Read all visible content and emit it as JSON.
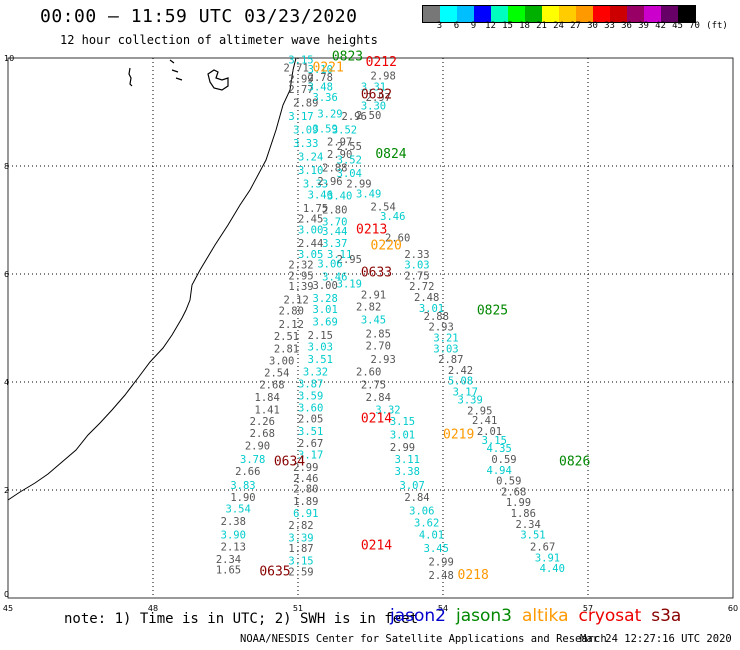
{
  "title": "00:00 – 11:59 UTC 03/23/2020",
  "subtitle": "12 hour collection of altimeter wave heights",
  "colorbar": {
    "colors": [
      "#777777",
      "#00ffff",
      "#00bfff",
      "#0000ff",
      "#00ffbf",
      "#00ff00",
      "#00b000",
      "#ffff00",
      "#ffcc00",
      "#ff9900",
      "#ff0000",
      "#cc0000",
      "#990066",
      "#cc00cc",
      "#660066",
      "#000000"
    ],
    "labels": [
      "3",
      "6",
      "9",
      "12",
      "15",
      "18",
      "21",
      "24",
      "27",
      "30",
      "33",
      "36",
      "39",
      "42",
      "45",
      "70"
    ],
    "unit": "(ft)"
  },
  "colors": {
    "gray": "#555555",
    "cyan": "#00cccc",
    "jason2": "#0000cc",
    "jason3": "#008800",
    "altika": "#ff9900",
    "cryosat": "#ee0000",
    "s3a": "#880000"
  },
  "axes": {
    "x_ticks": [
      "45",
      "48",
      "51",
      "54",
      "57",
      "60"
    ],
    "y_ticks": [
      "0",
      "2",
      "4",
      "6",
      "8",
      "10"
    ]
  },
  "chart_data": {
    "type": "scatter",
    "x_unit": "longitude (deg)",
    "y_unit": "latitude (deg)",
    "xlim": [
      45,
      60
    ],
    "ylim": [
      0,
      10
    ],
    "wave_heights": [
      {
        "x": 50.8,
        "y": 9.9,
        "v": "3.15",
        "c": "cyan"
      },
      {
        "x": 50.7,
        "y": 9.75,
        "v": "2.71",
        "c": "gray"
      },
      {
        "x": 51.2,
        "y": 9.72,
        "v": "3.10",
        "c": "cyan"
      },
      {
        "x": 50.8,
        "y": 9.55,
        "v": "2.99",
        "c": "gray"
      },
      {
        "x": 51.2,
        "y": 9.57,
        "v": "2.78",
        "c": "gray"
      },
      {
        "x": 52.5,
        "y": 9.6,
        "v": "2.98",
        "c": "gray"
      },
      {
        "x": 50.8,
        "y": 9.35,
        "v": "2.77",
        "c": "gray"
      },
      {
        "x": 51.2,
        "y": 9.4,
        "v": "3.48",
        "c": "cyan"
      },
      {
        "x": 51.3,
        "y": 9.2,
        "v": "3.36",
        "c": "cyan"
      },
      {
        "x": 52.3,
        "y": 9.4,
        "v": "3.31",
        "c": "cyan"
      },
      {
        "x": 52.4,
        "y": 9.2,
        "v": "2.97",
        "c": "gray"
      },
      {
        "x": 50.9,
        "y": 9.1,
        "v": "2.89",
        "c": "gray"
      },
      {
        "x": 52.3,
        "y": 9.05,
        "v": "3.30",
        "c": "cyan"
      },
      {
        "x": 50.8,
        "y": 8.85,
        "v": "3.17",
        "c": "cyan"
      },
      {
        "x": 51.4,
        "y": 8.9,
        "v": "3.29",
        "c": "cyan"
      },
      {
        "x": 51.9,
        "y": 8.85,
        "v": "2.96",
        "c": "gray"
      },
      {
        "x": 52.2,
        "y": 8.87,
        "v": "2.50",
        "c": "gray"
      },
      {
        "x": 50.9,
        "y": 8.6,
        "v": "3.09",
        "c": "cyan"
      },
      {
        "x": 51.3,
        "y": 8.62,
        "v": "3.59",
        "c": "cyan"
      },
      {
        "x": 51.7,
        "y": 8.6,
        "v": "3.52",
        "c": "cyan"
      },
      {
        "x": 50.9,
        "y": 8.35,
        "v": "3.33",
        "c": "cyan"
      },
      {
        "x": 51.6,
        "y": 8.38,
        "v": "2.97",
        "c": "gray"
      },
      {
        "x": 51.8,
        "y": 8.3,
        "v": "2.55",
        "c": "gray"
      },
      {
        "x": 51.0,
        "y": 8.1,
        "v": "3.24",
        "c": "cyan"
      },
      {
        "x": 51.6,
        "y": 8.15,
        "v": "2.90",
        "c": "gray"
      },
      {
        "x": 51.8,
        "y": 8.05,
        "v": "3.52",
        "c": "cyan"
      },
      {
        "x": 51.0,
        "y": 7.85,
        "v": "3.10",
        "c": "cyan"
      },
      {
        "x": 51.5,
        "y": 7.9,
        "v": "2.88",
        "c": "gray"
      },
      {
        "x": 51.8,
        "y": 7.8,
        "v": "3.04",
        "c": "cyan"
      },
      {
        "x": 51.1,
        "y": 7.6,
        "v": "3.33",
        "c": "cyan"
      },
      {
        "x": 51.4,
        "y": 7.65,
        "v": "2.96",
        "c": "gray"
      },
      {
        "x": 52.0,
        "y": 7.6,
        "v": "2.99",
        "c": "gray"
      },
      {
        "x": 51.2,
        "y": 7.4,
        "v": "3.46",
        "c": "cyan"
      },
      {
        "x": 51.6,
        "y": 7.38,
        "v": "3.40",
        "c": "cyan"
      },
      {
        "x": 52.2,
        "y": 7.42,
        "v": "3.49",
        "c": "cyan"
      },
      {
        "x": 51.1,
        "y": 7.15,
        "v": "1.75",
        "c": "gray"
      },
      {
        "x": 51.5,
        "y": 7.12,
        "v": "2.80",
        "c": "gray"
      },
      {
        "x": 52.5,
        "y": 7.18,
        "v": "2.54",
        "c": "gray"
      },
      {
        "x": 51.0,
        "y": 6.95,
        "v": "2.45",
        "c": "gray"
      },
      {
        "x": 51.5,
        "y": 6.9,
        "v": "3.70",
        "c": "cyan"
      },
      {
        "x": 52.7,
        "y": 7.0,
        "v": "3.46",
        "c": "cyan"
      },
      {
        "x": 51.0,
        "y": 6.75,
        "v": "3.00",
        "c": "cyan"
      },
      {
        "x": 51.5,
        "y": 6.72,
        "v": "3.44",
        "c": "cyan"
      },
      {
        "x": 52.8,
        "y": 6.6,
        "v": "2.60",
        "c": "gray"
      },
      {
        "x": 51.0,
        "y": 6.5,
        "v": "2.44",
        "c": "gray"
      },
      {
        "x": 51.5,
        "y": 6.5,
        "v": "3.37",
        "c": "cyan"
      },
      {
        "x": 51.6,
        "y": 6.3,
        "v": "3.11",
        "c": "cyan"
      },
      {
        "x": 53.2,
        "y": 6.3,
        "v": "2.33",
        "c": "gray"
      },
      {
        "x": 51.0,
        "y": 6.3,
        "v": "3.05",
        "c": "cyan"
      },
      {
        "x": 51.8,
        "y": 6.2,
        "v": "2.95",
        "c": "gray"
      },
      {
        "x": 50.8,
        "y": 6.1,
        "v": "2.32",
        "c": "gray"
      },
      {
        "x": 51.4,
        "y": 6.12,
        "v": "3.06",
        "c": "cyan"
      },
      {
        "x": 53.2,
        "y": 6.1,
        "v": "3.03",
        "c": "cyan"
      },
      {
        "x": 50.8,
        "y": 5.9,
        "v": "2.95",
        "c": "gray"
      },
      {
        "x": 51.5,
        "y": 5.88,
        "v": "3.46",
        "c": "cyan"
      },
      {
        "x": 53.2,
        "y": 5.9,
        "v": "2.75",
        "c": "gray"
      },
      {
        "x": 50.8,
        "y": 5.7,
        "v": "1.39",
        "c": "gray"
      },
      {
        "x": 51.3,
        "y": 5.72,
        "v": "3.00",
        "c": "gray"
      },
      {
        "x": 51.8,
        "y": 5.75,
        "v": "3.19",
        "c": "cyan"
      },
      {
        "x": 53.3,
        "y": 5.7,
        "v": "2.72",
        "c": "gray"
      },
      {
        "x": 52.3,
        "y": 5.55,
        "v": "2.91",
        "c": "gray"
      },
      {
        "x": 50.7,
        "y": 5.45,
        "v": "2.12",
        "c": "gray"
      },
      {
        "x": 51.3,
        "y": 5.48,
        "v": "3.28",
        "c": "cyan"
      },
      {
        "x": 53.4,
        "y": 5.5,
        "v": "2.48",
        "c": "gray"
      },
      {
        "x": 50.6,
        "y": 5.25,
        "v": "2.80",
        "c": "gray"
      },
      {
        "x": 51.3,
        "y": 5.28,
        "v": "3.01",
        "c": "cyan"
      },
      {
        "x": 52.2,
        "y": 5.32,
        "v": "2.82",
        "c": "gray"
      },
      {
        "x": 53.5,
        "y": 5.3,
        "v": "3.01",
        "c": "cyan"
      },
      {
        "x": 50.6,
        "y": 5.0,
        "v": "2.12",
        "c": "gray"
      },
      {
        "x": 51.3,
        "y": 5.05,
        "v": "3.69",
        "c": "cyan"
      },
      {
        "x": 52.3,
        "y": 5.08,
        "v": "3.45",
        "c": "cyan"
      },
      {
        "x": 53.6,
        "y": 5.15,
        "v": "2.88",
        "c": "gray"
      },
      {
        "x": 53.7,
        "y": 4.95,
        "v": "2.93",
        "c": "gray"
      },
      {
        "x": 50.5,
        "y": 4.78,
        "v": "2.51",
        "c": "gray"
      },
      {
        "x": 51.2,
        "y": 4.8,
        "v": "2.15",
        "c": "gray"
      },
      {
        "x": 52.4,
        "y": 4.82,
        "v": "2.85",
        "c": "gray"
      },
      {
        "x": 53.8,
        "y": 4.75,
        "v": "3.21",
        "c": "cyan"
      },
      {
        "x": 50.5,
        "y": 4.55,
        "v": "2.81",
        "c": "gray"
      },
      {
        "x": 51.2,
        "y": 4.58,
        "v": "3.03",
        "c": "cyan"
      },
      {
        "x": 52.4,
        "y": 4.6,
        "v": "2.70",
        "c": "gray"
      },
      {
        "x": 53.8,
        "y": 4.55,
        "v": "3.03",
        "c": "cyan"
      },
      {
        "x": 50.4,
        "y": 4.32,
        "v": "3.00",
        "c": "gray"
      },
      {
        "x": 51.2,
        "y": 4.35,
        "v": "3.51",
        "c": "cyan"
      },
      {
        "x": 52.5,
        "y": 4.35,
        "v": "2.93",
        "c": "gray"
      },
      {
        "x": 53.9,
        "y": 4.35,
        "v": "2.87",
        "c": "gray"
      },
      {
        "x": 50.3,
        "y": 4.1,
        "v": "2.54",
        "c": "gray"
      },
      {
        "x": 51.1,
        "y": 4.12,
        "v": "3.32",
        "c": "cyan"
      },
      {
        "x": 52.2,
        "y": 4.12,
        "v": "2.60",
        "c": "gray"
      },
      {
        "x": 54.1,
        "y": 4.15,
        "v": "2.42",
        "c": "gray"
      },
      {
        "x": 50.2,
        "y": 3.88,
        "v": "2.68",
        "c": "gray"
      },
      {
        "x": 51.0,
        "y": 3.9,
        "v": "3.87",
        "c": "cyan"
      },
      {
        "x": 52.3,
        "y": 3.88,
        "v": "2.75",
        "c": "gray"
      },
      {
        "x": 54.1,
        "y": 3.95,
        "v": "5.08",
        "c": "cyan"
      },
      {
        "x": 54.2,
        "y": 3.75,
        "v": "3.17",
        "c": "cyan"
      },
      {
        "x": 50.1,
        "y": 3.65,
        "v": "1.84",
        "c": "gray"
      },
      {
        "x": 51.0,
        "y": 3.68,
        "v": "3.59",
        "c": "cyan"
      },
      {
        "x": 52.4,
        "y": 3.65,
        "v": "2.84",
        "c": "gray"
      },
      {
        "x": 54.3,
        "y": 3.6,
        "v": "3.39",
        "c": "cyan"
      },
      {
        "x": 50.1,
        "y": 3.42,
        "v": "1.41",
        "c": "gray"
      },
      {
        "x": 51.0,
        "y": 3.45,
        "v": "3.60",
        "c": "cyan"
      },
      {
        "x": 52.6,
        "y": 3.42,
        "v": "3.32",
        "c": "cyan"
      },
      {
        "x": 54.5,
        "y": 3.4,
        "v": "2.95",
        "c": "gray"
      },
      {
        "x": 50.0,
        "y": 3.2,
        "v": "2.26",
        "c": "gray"
      },
      {
        "x": 51.0,
        "y": 3.25,
        "v": "2.05",
        "c": "gray"
      },
      {
        "x": 52.9,
        "y": 3.2,
        "v": "3.15",
        "c": "cyan"
      },
      {
        "x": 54.6,
        "y": 3.22,
        "v": "2.41",
        "c": "gray"
      },
      {
        "x": 50.0,
        "y": 2.98,
        "v": "2.68",
        "c": "gray"
      },
      {
        "x": 51.0,
        "y": 3.02,
        "v": "3.51",
        "c": "cyan"
      },
      {
        "x": 52.9,
        "y": 2.95,
        "v": "3.01",
        "c": "cyan"
      },
      {
        "x": 54.7,
        "y": 3.02,
        "v": "2.01",
        "c": "gray"
      },
      {
        "x": 49.9,
        "y": 2.75,
        "v": "2.90",
        "c": "gray"
      },
      {
        "x": 51.0,
        "y": 2.8,
        "v": "2.67",
        "c": "gray"
      },
      {
        "x": 52.9,
        "y": 2.72,
        "v": "2.99",
        "c": "gray"
      },
      {
        "x": 54.8,
        "y": 2.85,
        "v": "3.15",
        "c": "cyan"
      },
      {
        "x": 54.9,
        "y": 2.7,
        "v": "4.35",
        "c": "cyan"
      },
      {
        "x": 49.8,
        "y": 2.5,
        "v": "3.78",
        "c": "cyan"
      },
      {
        "x": 51.0,
        "y": 2.58,
        "v": "3.17",
        "c": "cyan"
      },
      {
        "x": 53.0,
        "y": 2.5,
        "v": "3.11",
        "c": "cyan"
      },
      {
        "x": 55.0,
        "y": 2.5,
        "v": "0.59",
        "c": "gray"
      },
      {
        "x": 49.7,
        "y": 2.28,
        "v": "2.66",
        "c": "gray"
      },
      {
        "x": 50.9,
        "y": 2.35,
        "v": "2.99",
        "c": "gray"
      },
      {
        "x": 53.0,
        "y": 2.28,
        "v": "3.38",
        "c": "cyan"
      },
      {
        "x": 54.9,
        "y": 2.3,
        "v": "4.94",
        "c": "cyan"
      },
      {
        "x": 50.9,
        "y": 2.15,
        "v": "2.46",
        "c": "gray"
      },
      {
        "x": 55.1,
        "y": 2.1,
        "v": "0.59",
        "c": "gray"
      },
      {
        "x": 49.6,
        "y": 2.02,
        "v": "3.83",
        "c": "cyan"
      },
      {
        "x": 50.9,
        "y": 1.95,
        "v": "2.80",
        "c": "gray"
      },
      {
        "x": 53.1,
        "y": 2.02,
        "v": "3.07",
        "c": "cyan"
      },
      {
        "x": 55.2,
        "y": 1.9,
        "v": "2.68",
        "c": "gray"
      },
      {
        "x": 49.6,
        "y": 1.8,
        "v": "1.90",
        "c": "gray"
      },
      {
        "x": 50.9,
        "y": 1.72,
        "v": "1.89",
        "c": "gray"
      },
      {
        "x": 53.2,
        "y": 1.8,
        "v": "2.84",
        "c": "gray"
      },
      {
        "x": 55.3,
        "y": 1.7,
        "v": "1.99",
        "c": "gray"
      },
      {
        "x": 49.5,
        "y": 1.58,
        "v": "3.54",
        "c": "cyan"
      },
      {
        "x": 50.9,
        "y": 1.5,
        "v": "6.91",
        "c": "cyan"
      },
      {
        "x": 53.3,
        "y": 1.55,
        "v": "3.06",
        "c": "cyan"
      },
      {
        "x": 55.4,
        "y": 1.5,
        "v": "1.86",
        "c": "gray"
      },
      {
        "x": 49.4,
        "y": 1.35,
        "v": "2.38",
        "c": "gray"
      },
      {
        "x": 50.8,
        "y": 1.28,
        "v": "2.82",
        "c": "gray"
      },
      {
        "x": 53.4,
        "y": 1.32,
        "v": "3.62",
        "c": "cyan"
      },
      {
        "x": 55.5,
        "y": 1.3,
        "v": "2.34",
        "c": "gray"
      },
      {
        "x": 49.4,
        "y": 1.1,
        "v": "3.90",
        "c": "cyan"
      },
      {
        "x": 50.8,
        "y": 1.05,
        "v": "3.39",
        "c": "cyan"
      },
      {
        "x": 53.5,
        "y": 1.1,
        "v": "4.01",
        "c": "cyan"
      },
      {
        "x": 55.6,
        "y": 1.1,
        "v": "3.51",
        "c": "cyan"
      },
      {
        "x": 49.4,
        "y": 0.88,
        "v": "2.13",
        "c": "gray"
      },
      {
        "x": 50.8,
        "y": 0.85,
        "v": "1.87",
        "c": "gray"
      },
      {
        "x": 53.6,
        "y": 0.85,
        "v": "3.45",
        "c": "cyan"
      },
      {
        "x": 55.8,
        "y": 0.88,
        "v": "2.67",
        "c": "gray"
      },
      {
        "x": 49.3,
        "y": 0.65,
        "v": "2.34",
        "c": "gray"
      },
      {
        "x": 50.8,
        "y": 0.62,
        "v": "3.15",
        "c": "cyan"
      },
      {
        "x": 55.9,
        "y": 0.68,
        "v": "3.91",
        "c": "cyan"
      },
      {
        "x": 53.7,
        "y": 0.6,
        "v": "2.99",
        "c": "gray"
      },
      {
        "x": 49.3,
        "y": 0.45,
        "v": "1.65",
        "c": "gray"
      },
      {
        "x": 50.8,
        "y": 0.42,
        "v": "2.59",
        "c": "gray"
      },
      {
        "x": 53.7,
        "y": 0.35,
        "v": "2.48",
        "c": "gray"
      },
      {
        "x": 56.0,
        "y": 0.48,
        "v": "4.40",
        "c": "cyan"
      }
    ],
    "pass_labels": [
      {
        "x": 51.7,
        "y": 9.95,
        "text": "0823",
        "sat": "jason3"
      },
      {
        "x": 51.3,
        "y": 9.75,
        "text": "0221",
        "sat": "altika"
      },
      {
        "x": 52.4,
        "y": 9.85,
        "text": "0212",
        "sat": "cryosat"
      },
      {
        "x": 52.3,
        "y": 9.25,
        "text": "0632",
        "sat": "s3a"
      },
      {
        "x": 52.6,
        "y": 8.15,
        "text": "0824",
        "sat": "jason3"
      },
      {
        "x": 52.2,
        "y": 6.75,
        "text": "0213",
        "sat": "cryosat"
      },
      {
        "x": 52.5,
        "y": 6.45,
        "text": "0220",
        "sat": "altika"
      },
      {
        "x": 52.3,
        "y": 5.95,
        "text": "0633",
        "sat": "s3a"
      },
      {
        "x": 54.7,
        "y": 5.25,
        "text": "0825",
        "sat": "jason3"
      },
      {
        "x": 52.3,
        "y": 3.25,
        "text": "0214",
        "sat": "cryosat"
      },
      {
        "x": 54.0,
        "y": 2.95,
        "text": "0219",
        "sat": "altika"
      },
      {
        "x": 50.5,
        "y": 2.45,
        "text": "0634",
        "sat": "s3a"
      },
      {
        "x": 56.4,
        "y": 2.45,
        "text": "0826",
        "sat": "jason3"
      },
      {
        "x": 52.3,
        "y": 0.9,
        "text": "0214",
        "sat": "cryosat"
      },
      {
        "x": 50.2,
        "y": 0.42,
        "text": "0635",
        "sat": "s3a"
      },
      {
        "x": 54.3,
        "y": 0.35,
        "text": "0218",
        "sat": "altika"
      }
    ]
  },
  "note": "note:  1) Time is in UTC;  2) SWH is in feet",
  "satellites": [
    {
      "name": "jason2",
      "color": "#0000cc"
    },
    {
      "name": "jason3",
      "color": "#008800"
    },
    {
      "name": "altika",
      "color": "#ff9900"
    },
    {
      "name": "cryosat",
      "color": "#ee0000"
    },
    {
      "name": "s3a",
      "color": "#880000"
    }
  ],
  "footer": "NOAA/NESDIS Center for Satellite Applications and Research",
  "footer_time": "Mar 24 12:27:16 UTC 2020"
}
